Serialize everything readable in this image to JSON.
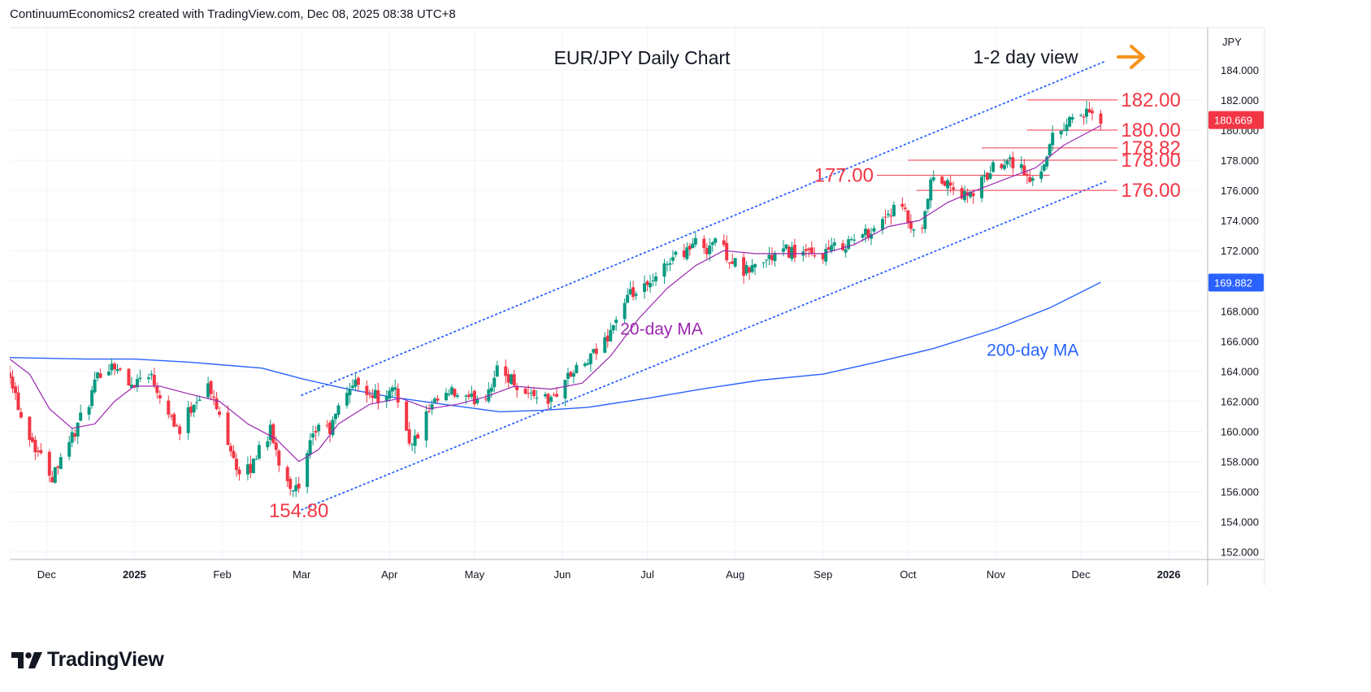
{
  "header": {
    "credit": "ContinuumEconomics2 created with TradingView.com, Dec 08, 2025 08:38 UTC+8"
  },
  "footer": {
    "brand": "TradingView"
  },
  "colors": {
    "up": "#089981",
    "down": "#f23645",
    "ma20": "#9c27b0",
    "ma200": "#2962ff",
    "channel": "#2962ff",
    "level": "#f23645",
    "arrow": "#f7931a",
    "grid": "#f0f3fa",
    "axis_text": "#131722"
  },
  "chart_data": {
    "type": "candlestick",
    "title": "EUR/JPY Daily Chart",
    "subtitle": "1-2 day view",
    "currency": "JPY",
    "last_price": "180.669",
    "ma200_last": "169.882",
    "ylim": [
      151.5,
      186.8
    ],
    "yticks": [
      "184.000",
      "182.000",
      "180.000",
      "178.000",
      "176.000",
      "174.000",
      "172.000",
      "170.000",
      "168.000",
      "166.000",
      "164.000",
      "162.000",
      "160.000",
      "158.000",
      "156.000",
      "154.000",
      "152.000"
    ],
    "xlim": [
      "2024-11-18",
      "2026-01-13"
    ],
    "xticks": [
      {
        "label": "Dec",
        "date": "2024-12-01"
      },
      {
        "label": "2025",
        "date": "2025-01-01"
      },
      {
        "label": "Feb",
        "date": "2025-02-01"
      },
      {
        "label": "Mar",
        "date": "2025-03-01"
      },
      {
        "label": "Apr",
        "date": "2025-04-01"
      },
      {
        "label": "May",
        "date": "2025-05-01"
      },
      {
        "label": "Jun",
        "date": "2025-06-01"
      },
      {
        "label": "Jul",
        "date": "2025-07-01"
      },
      {
        "label": "Aug",
        "date": "2025-08-01"
      },
      {
        "label": "Sep",
        "date": "2025-09-01"
      },
      {
        "label": "Oct",
        "date": "2025-10-01"
      },
      {
        "label": "Nov",
        "date": "2025-11-01"
      },
      {
        "label": "Dec",
        "date": "2025-12-01"
      },
      {
        "label": "2026",
        "date": "2026-01-01"
      }
    ],
    "close_path": [
      [
        "2024-11-18",
        164.0
      ],
      [
        "2024-11-22",
        161.0
      ],
      [
        "2024-11-27",
        159.0
      ],
      [
        "2024-12-03",
        157.0
      ],
      [
        "2024-12-06",
        158.5
      ],
      [
        "2024-12-11",
        160.0
      ],
      [
        "2024-12-16",
        162.0
      ],
      [
        "2024-12-20",
        164.0
      ],
      [
        "2024-12-25",
        164.5
      ],
      [
        "2024-12-30",
        163.0
      ],
      [
        "2025-01-06",
        164.0
      ],
      [
        "2025-01-10",
        162.5
      ],
      [
        "2025-01-14",
        161.0
      ],
      [
        "2025-01-17",
        160.0
      ],
      [
        "2025-01-22",
        162.0
      ],
      [
        "2025-01-27",
        163.0
      ],
      [
        "2025-01-31",
        161.0
      ],
      [
        "2025-02-04",
        159.0
      ],
      [
        "2025-02-07",
        157.0
      ],
      [
        "2025-02-11",
        157.5
      ],
      [
        "2025-02-14",
        159.0
      ],
      [
        "2025-02-18",
        160.0
      ],
      [
        "2025-02-21",
        158.0
      ],
      [
        "2025-02-25",
        156.5
      ],
      [
        "2025-02-28",
        156.0
      ],
      [
        "2025-03-04",
        159.0
      ],
      [
        "2025-03-07",
        160.5
      ],
      [
        "2025-03-11",
        160.0
      ],
      [
        "2025-03-14",
        161.5
      ],
      [
        "2025-03-18",
        163.0
      ],
      [
        "2025-03-21",
        163.2
      ],
      [
        "2025-03-26",
        162.5
      ],
      [
        "2025-03-31",
        162.0
      ],
      [
        "2025-04-03",
        163.0
      ],
      [
        "2025-04-07",
        160.0
      ],
      [
        "2025-04-09",
        159.0
      ],
      [
        "2025-04-14",
        161.0
      ],
      [
        "2025-04-18",
        162.0
      ],
      [
        "2025-04-23",
        162.5
      ],
      [
        "2025-04-29",
        162.0
      ],
      [
        "2025-05-05",
        162.5
      ],
      [
        "2025-05-09",
        164.0
      ],
      [
        "2025-05-14",
        163.5
      ],
      [
        "2025-05-19",
        162.5
      ],
      [
        "2025-05-23",
        162.5
      ],
      [
        "2025-05-28",
        162.0
      ],
      [
        "2025-06-02",
        163.5
      ],
      [
        "2025-06-06",
        164.0
      ],
      [
        "2025-06-11",
        164.8
      ],
      [
        "2025-06-16",
        166.0
      ],
      [
        "2025-06-20",
        167.5
      ],
      [
        "2025-06-25",
        169.0
      ],
      [
        "2025-07-01",
        169.5
      ],
      [
        "2025-07-04",
        170.0
      ],
      [
        "2025-07-09",
        171.5
      ],
      [
        "2025-07-14",
        172.0
      ],
      [
        "2025-07-18",
        172.5
      ],
      [
        "2025-07-22",
        172.2
      ],
      [
        "2025-07-25",
        172.8
      ],
      [
        "2025-07-30",
        171.5
      ],
      [
        "2025-08-04",
        170.5
      ],
      [
        "2025-08-08",
        171.0
      ],
      [
        "2025-08-13",
        171.5
      ],
      [
        "2025-08-19",
        172.0
      ],
      [
        "2025-08-25",
        171.8
      ],
      [
        "2025-08-29",
        171.5
      ],
      [
        "2025-09-03",
        172.0
      ],
      [
        "2025-09-09",
        172.5
      ],
      [
        "2025-09-15",
        173.0
      ],
      [
        "2025-09-19",
        173.5
      ],
      [
        "2025-09-24",
        174.5
      ],
      [
        "2025-09-29",
        174.8
      ],
      [
        "2025-10-03",
        173.0
      ],
      [
        "2025-10-06",
        173.2
      ],
      [
        "2025-10-09",
        176.5
      ],
      [
        "2025-10-14",
        176.5
      ],
      [
        "2025-10-17",
        176.0
      ],
      [
        "2025-10-22",
        175.5
      ],
      [
        "2025-10-27",
        176.5
      ],
      [
        "2025-10-31",
        177.5
      ],
      [
        "2025-11-05",
        178.2
      ],
      [
        "2025-11-10",
        177.5
      ],
      [
        "2025-11-13",
        176.5
      ],
      [
        "2025-11-17",
        177.5
      ],
      [
        "2025-11-21",
        179.5
      ],
      [
        "2025-11-26",
        180.5
      ],
      [
        "2025-11-29",
        181.2
      ],
      [
        "2025-12-03",
        181.0
      ],
      [
        "2025-12-05",
        180.8
      ],
      [
        "2025-12-08",
        180.7
      ]
    ],
    "ma20_path": [
      [
        "2024-11-18",
        164.8
      ],
      [
        "2024-11-25",
        163.8
      ],
      [
        "2024-12-02",
        161.5
      ],
      [
        "2024-12-10",
        160.2
      ],
      [
        "2024-12-18",
        160.5
      ],
      [
        "2024-12-25",
        162.0
      ],
      [
        "2025-01-01",
        163.0
      ],
      [
        "2025-01-10",
        163.0
      ],
      [
        "2025-01-20",
        162.5
      ],
      [
        "2025-01-31",
        162.0
      ],
      [
        "2025-02-10",
        160.5
      ],
      [
        "2025-02-20",
        159.5
      ],
      [
        "2025-02-28",
        158.0
      ],
      [
        "2025-03-07",
        158.8
      ],
      [
        "2025-03-14",
        160.5
      ],
      [
        "2025-03-25",
        161.8
      ],
      [
        "2025-04-05",
        162.2
      ],
      [
        "2025-04-15",
        161.5
      ],
      [
        "2025-04-25",
        161.8
      ],
      [
        "2025-05-05",
        162.3
      ],
      [
        "2025-05-15",
        163.0
      ],
      [
        "2025-05-28",
        162.8
      ],
      [
        "2025-06-08",
        163.2
      ],
      [
        "2025-06-18",
        165.0
      ],
      [
        "2025-06-28",
        167.5
      ],
      [
        "2025-07-08",
        169.5
      ],
      [
        "2025-07-18",
        171.0
      ],
      [
        "2025-07-28",
        172.0
      ],
      [
        "2025-08-08",
        171.8
      ],
      [
        "2025-08-20",
        171.8
      ],
      [
        "2025-09-01",
        171.8
      ],
      [
        "2025-09-12",
        172.4
      ],
      [
        "2025-09-24",
        173.6
      ],
      [
        "2025-10-05",
        174.0
      ],
      [
        "2025-10-15",
        175.2
      ],
      [
        "2025-10-25",
        176.0
      ],
      [
        "2025-11-05",
        176.8
      ],
      [
        "2025-11-15",
        177.5
      ],
      [
        "2025-11-25",
        179.0
      ],
      [
        "2025-12-08",
        180.3
      ]
    ],
    "ma200_path": [
      [
        "2024-11-18",
        164.9
      ],
      [
        "2024-12-15",
        164.8
      ],
      [
        "2025-01-01",
        164.8
      ],
      [
        "2025-01-20",
        164.6
      ],
      [
        "2025-02-15",
        164.2
      ],
      [
        "2025-03-01",
        163.5
      ],
      [
        "2025-03-15",
        162.9
      ],
      [
        "2025-04-01",
        162.3
      ],
      [
        "2025-04-20",
        161.8
      ],
      [
        "2025-05-10",
        161.3
      ],
      [
        "2025-05-25",
        161.4
      ],
      [
        "2025-06-10",
        161.6
      ],
      [
        "2025-07-01",
        162.2
      ],
      [
        "2025-07-20",
        162.8
      ],
      [
        "2025-08-10",
        163.4
      ],
      [
        "2025-09-01",
        163.8
      ],
      [
        "2025-09-20",
        164.6
      ],
      [
        "2025-10-10",
        165.5
      ],
      [
        "2025-11-01",
        166.8
      ],
      [
        "2025-11-20",
        168.2
      ],
      [
        "2025-12-08",
        169.9
      ]
    ],
    "channel": {
      "upper": [
        [
          "2025-03-01",
          162.4
        ],
        [
          "2025-12-10",
          184.6
        ]
      ],
      "lower": [
        [
          "2025-03-01",
          154.8
        ],
        [
          "2025-12-10",
          176.6
        ]
      ]
    },
    "levels": [
      {
        "label": "182.00",
        "value": 182.0,
        "from": "2025-11-12",
        "to": "2025-12-14",
        "label_side": "right"
      },
      {
        "label": "180.00",
        "value": 180.0,
        "from": "2025-11-12",
        "to": "2025-12-14",
        "label_side": "right"
      },
      {
        "label": "178.82",
        "value": 178.82,
        "from": "2025-10-27",
        "to": "2025-12-14",
        "label_side": "right"
      },
      {
        "label": "178.00",
        "value": 178.0,
        "from": "2025-10-01",
        "to": "2025-12-14",
        "label_side": "right"
      },
      {
        "label": "177.00",
        "value": 177.0,
        "from": "2025-09-20",
        "to": "2025-11-20",
        "label_side": "left"
      },
      {
        "label": "176.00",
        "value": 176.0,
        "from": "2025-10-04",
        "to": "2025-12-14",
        "label_side": "right"
      }
    ],
    "annotations": [
      {
        "text": "154.80",
        "date": "2025-02-28",
        "value": 154.8,
        "color": "level"
      },
      {
        "text": "20-day MA",
        "date": "2025-07-06",
        "value": 166.9,
        "color": "ma20"
      },
      {
        "text": "200-day MA",
        "date": "2025-11-14",
        "value": 165.5,
        "color": "ma200"
      }
    ]
  }
}
